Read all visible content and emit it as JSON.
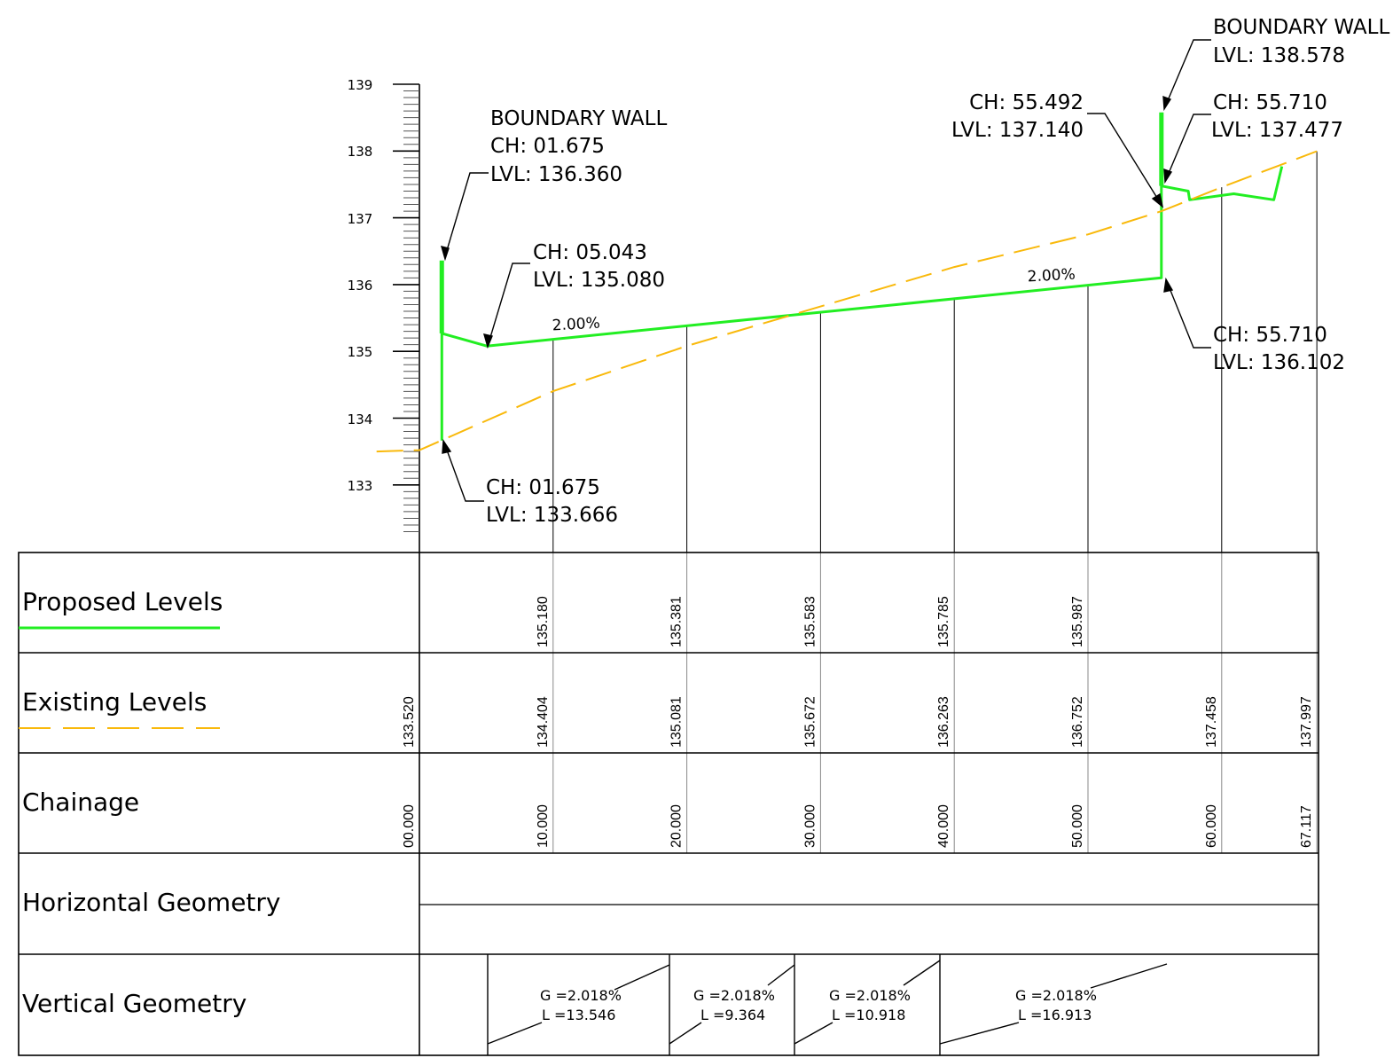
{
  "chart_data": {
    "type": "line",
    "y_axis": {
      "range": [
        132.3,
        139.0
      ],
      "tick_labels": [
        "139",
        "138",
        "137",
        "136",
        "135",
        "134",
        "133"
      ]
    },
    "x_range": [
      0,
      67.117
    ],
    "series": [
      {
        "name": "Proposed Levels",
        "color": "#22ee22",
        "style": "solid",
        "points": [
          [
            1.675,
            133.666
          ],
          [
            1.675,
            135.27
          ],
          [
            5.043,
            135.08
          ],
          [
            55.492,
            136.102
          ],
          [
            55.492,
            137.477
          ],
          [
            57.5,
            137.4
          ],
          [
            57.6,
            137.27
          ],
          [
            60.9,
            137.36
          ],
          [
            63.9,
            137.27
          ],
          [
            64.5,
            137.77
          ]
        ]
      },
      {
        "name": "Existing Levels",
        "color": "#f9b90b",
        "style": "dashed",
        "points": [
          [
            -3.2,
            133.5
          ],
          [
            0,
            133.52
          ],
          [
            10,
            134.404
          ],
          [
            20,
            135.081
          ],
          [
            30,
            135.672
          ],
          [
            40,
            136.263
          ],
          [
            50,
            136.752
          ],
          [
            55.5,
            137.1
          ],
          [
            60,
            137.458
          ],
          [
            67.117,
            137.997
          ]
        ]
      },
      {
        "name": "boundary-wall",
        "color": "#22ee22",
        "style": "solid",
        "points": [
          [
            1.675,
            135.27
          ],
          [
            1.675,
            136.36
          ],
          [
            55.492,
            137.477
          ],
          [
            55.492,
            138.578
          ]
        ]
      }
    ],
    "stations": [
      {
        "ch": "00.000",
        "existing": "133.520",
        "proposed": ""
      },
      {
        "ch": "10.000",
        "existing": "134.404",
        "proposed": "135.180"
      },
      {
        "ch": "20.000",
        "existing": "135.081",
        "proposed": "135.381"
      },
      {
        "ch": "30.000",
        "existing": "135.672",
        "proposed": "135.583"
      },
      {
        "ch": "40.000",
        "existing": "136.263",
        "proposed": "135.785"
      },
      {
        "ch": "50.000",
        "existing": "136.752",
        "proposed": "135.987"
      },
      {
        "ch": "60.000",
        "existing": "137.458",
        "proposed": ""
      },
      {
        "ch": "67.117",
        "existing": "137.997",
        "proposed": ""
      }
    ],
    "vertical_geometry": [
      {
        "g": "G =2.018%",
        "l": "L =13.546"
      },
      {
        "g": "G =2.018%",
        "l": "L =9.364"
      },
      {
        "g": "G =2.018%",
        "l": "L =10.918"
      },
      {
        "g": "G =2.018%",
        "l": "L =16.913"
      }
    ],
    "grade_labels": [
      "2.00%",
      "2.00%"
    ]
  },
  "annotations": {
    "wall_left": [
      "BOUNDARY WALL",
      "CH: 01.675",
      "LVL: 136.360"
    ],
    "bottom_left": [
      "CH: 01.675",
      "LVL: 133.666"
    ],
    "mid_left": [
      "CH: 05.043",
      "LVL: 135.080"
    ],
    "wall_right": [
      "BOUNDARY WALL",
      "LVL: 138.578"
    ],
    "right_a": [
      "CH: 55.492",
      "LVL: 137.140"
    ],
    "right_b": [
      "CH: 55.710",
      "LVL: 137.477"
    ],
    "right_c": [
      "CH: 55.710",
      "LVL: 136.102"
    ]
  },
  "rows": {
    "proposed": "Proposed Levels",
    "existing": "Existing Levels",
    "chainage": "Chainage",
    "horizontal": "Horizontal Geometry",
    "vertical": "Vertical Geometry"
  },
  "colors": {
    "proposed": "#22ee22",
    "existing": "#f9b90b",
    "grid": "#000000"
  }
}
